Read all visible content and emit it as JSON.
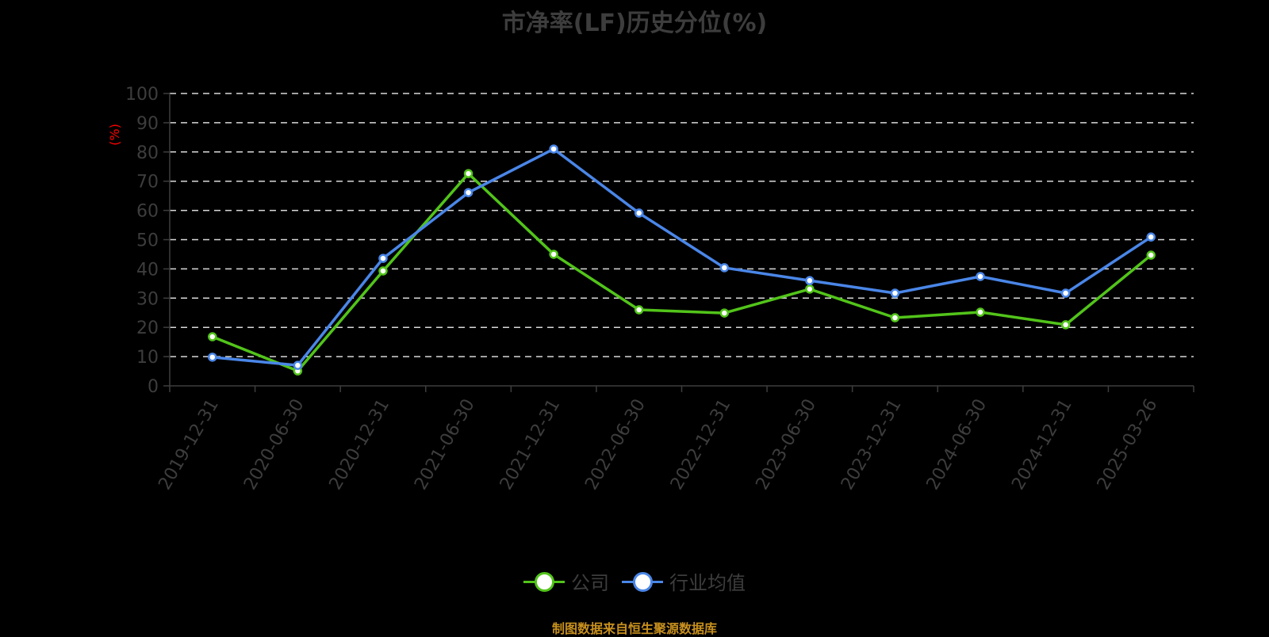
{
  "title": "市净率(LF)历史分位(%)",
  "source_note": "制图数据来自恒生聚源数据库",
  "y_axis": {
    "unit_label": "(%)",
    "ticks": [
      "0",
      "10",
      "20",
      "30",
      "40",
      "50",
      "60",
      "70",
      "80",
      "90",
      "100"
    ]
  },
  "legend": {
    "items": [
      {
        "label": "公司",
        "color": "#52c41a"
      },
      {
        "label": "行业均值",
        "color": "#4a86e8"
      }
    ]
  },
  "colors": {
    "background": "#000000",
    "company": "#52c41a",
    "industry": "#4a86e8",
    "grid": "#d9d9d9",
    "axis": "#3d3d3d",
    "text": "#3d3d3d",
    "unit": "#ff0000",
    "source": "#c8901e"
  },
  "chart_data": {
    "type": "line",
    "title": "市净率(LF)历史分位(%)",
    "xlabel": "",
    "ylabel": "(%)",
    "ylim": [
      0,
      100
    ],
    "yticks": [
      0,
      10,
      20,
      30,
      40,
      50,
      60,
      70,
      80,
      90,
      100
    ],
    "grid": "horizontal dashed",
    "legend_position": "bottom",
    "categories": [
      "2019-12-31",
      "2020-06-30",
      "2020-12-31",
      "2021-06-30",
      "2021-12-31",
      "2022-06-30",
      "2022-12-31",
      "2023-06-30",
      "2023-12-31",
      "2024-06-30",
      "2024-12-31",
      "2025-03-26"
    ],
    "series": [
      {
        "name": "公司",
        "color": "#52c41a",
        "values": [
          16.8,
          5.1,
          39.3,
          72.6,
          45.0,
          26.0,
          24.9,
          33.1,
          23.3,
          25.2,
          20.9,
          44.7
        ]
      },
      {
        "name": "行业均值",
        "color": "#4a86e8",
        "values": [
          9.8,
          7.0,
          43.6,
          66.1,
          81.0,
          59.1,
          40.4,
          36.0,
          31.7,
          37.4,
          31.7,
          50.9
        ]
      }
    ]
  }
}
